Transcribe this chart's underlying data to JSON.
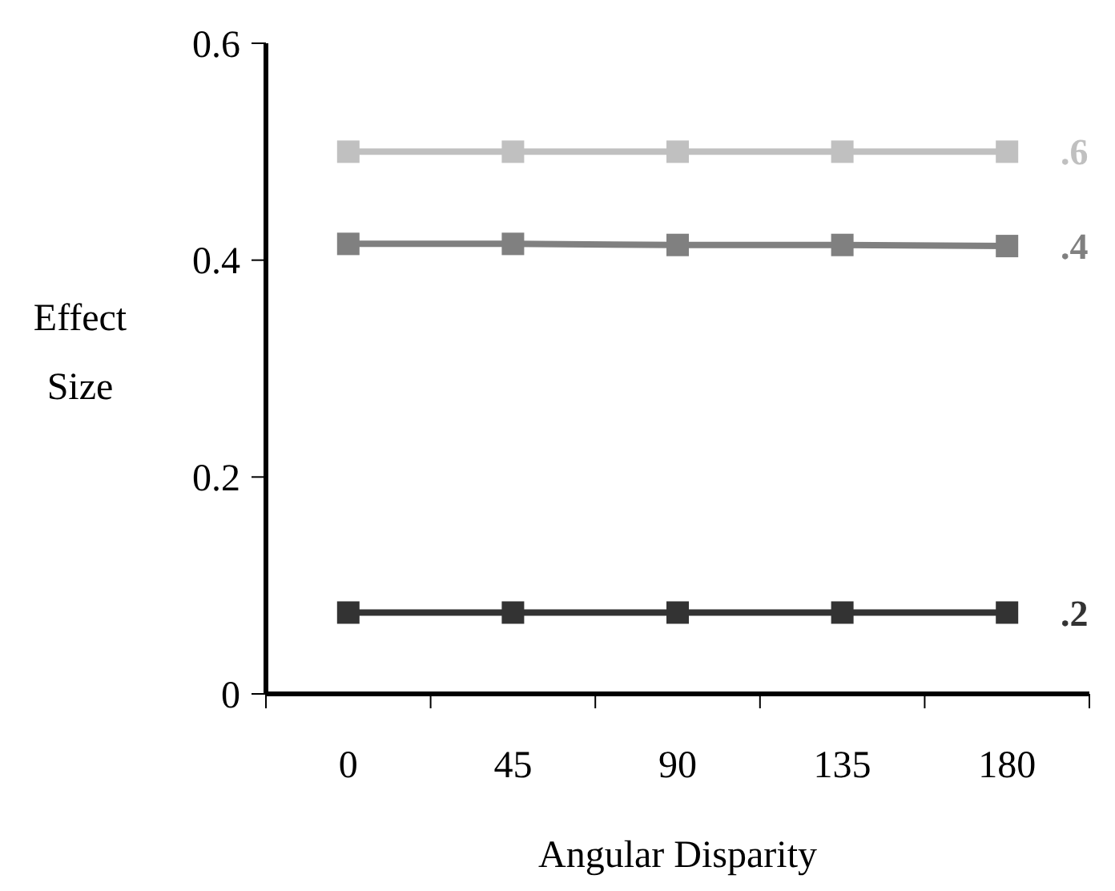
{
  "chart_data": {
    "type": "line",
    "xlabel": "Angular Disparity",
    "ylabel": "Effect Size",
    "categories": [
      "0",
      "45",
      "90",
      "135",
      "180"
    ],
    "ylim": [
      0,
      0.6
    ],
    "yticks": [
      0,
      0.2,
      0.4,
      0.6
    ],
    "marker": "square",
    "grid": false,
    "series": [
      {
        "name": ".6",
        "color": "#c0c0c0",
        "values": [
          0.5,
          0.5,
          0.5,
          0.5,
          0.5
        ]
      },
      {
        "name": ".4",
        "color": "#808080",
        "values": [
          0.415,
          0.415,
          0.414,
          0.414,
          0.413
        ]
      },
      {
        "name": ".2",
        "color": "#333333",
        "values": [
          0.075,
          0.075,
          0.075,
          0.075,
          0.075
        ]
      }
    ]
  }
}
